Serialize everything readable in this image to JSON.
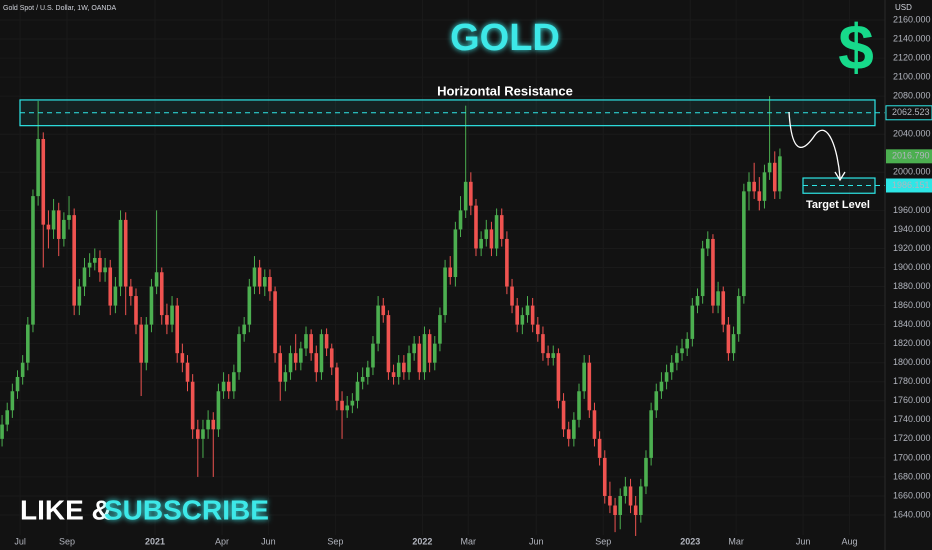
{
  "chart_data": {
    "type": "candlestick",
    "title": "GOLD",
    "subtitle": "Gold Spot / U.S. Dollar, 1W, OANDA",
    "symbol_icon": "$",
    "y_axis_label": "USD",
    "footer": {
      "left": "LIKE &",
      "right": "SUBSCRIBE"
    },
    "up_color": "#4caf50",
    "down_color": "#ef5350",
    "resistance": {
      "label": "Horizontal Resistance",
      "level": 2062.523,
      "zone": [
        2049,
        2076
      ],
      "color": "#2ee6e6"
    },
    "target": {
      "label": "Target Level",
      "level": 1986.151,
      "zone": [
        1978,
        1994
      ],
      "color": "#2ee6e6"
    },
    "last_price": {
      "value": 2016.79,
      "label": "2016.790"
    },
    "xlim": [
      -0.4,
      171.4
    ],
    "ylim": [
      1619,
      2181
    ],
    "xticks": [
      {
        "value": 3.5,
        "label": "Jul"
      },
      {
        "value": 12.6,
        "label": "Sep"
      },
      {
        "value": 29.7,
        "label": "2021"
      },
      {
        "value": 42.7,
        "label": "Apr"
      },
      {
        "value": 51.7,
        "label": "Jun"
      },
      {
        "value": 64.7,
        "label": "Sep"
      },
      {
        "value": 81.6,
        "label": "2022"
      },
      {
        "value": 90.5,
        "label": "Mar"
      },
      {
        "value": 103.7,
        "label": "Jun"
      },
      {
        "value": 116.7,
        "label": "Sep"
      },
      {
        "value": 133.6,
        "label": "2023"
      },
      {
        "value": 142.5,
        "label": "Mar"
      },
      {
        "value": 155.5,
        "label": "Jun"
      },
      {
        "value": 164.5,
        "label": "Aug"
      }
    ],
    "yticks": [
      {
        "value": 2160,
        "label": "2160.000"
      },
      {
        "value": 2140,
        "label": "2140.000"
      },
      {
        "value": 2120,
        "label": "2120.000"
      },
      {
        "value": 2100,
        "label": "2100.000"
      },
      {
        "value": 2080,
        "label": "2080.000"
      },
      {
        "value": 2040,
        "label": "2040.000"
      },
      {
        "value": 2000,
        "label": "2000.000"
      },
      {
        "value": 1960,
        "label": "1960.000"
      },
      {
        "value": 1940,
        "label": "1940.000"
      },
      {
        "value": 1920,
        "label": "1920.000"
      },
      {
        "value": 1900,
        "label": "1900.000"
      },
      {
        "value": 1880,
        "label": "1880.000"
      },
      {
        "value": 1860,
        "label": "1860.000"
      },
      {
        "value": 1840,
        "label": "1840.000"
      },
      {
        "value": 1820,
        "label": "1820.000"
      },
      {
        "value": 1800,
        "label": "1800.000"
      },
      {
        "value": 1780,
        "label": "1780.000"
      },
      {
        "value": 1760,
        "label": "1760.000"
      },
      {
        "value": 1740,
        "label": "1740.000"
      },
      {
        "value": 1720,
        "label": "1720.000"
      },
      {
        "value": 1700,
        "label": "1700.000"
      },
      {
        "value": 1680,
        "label": "1680.000"
      },
      {
        "value": 1660,
        "label": "1660.000"
      },
      {
        "value": 1640,
        "label": "1640.000"
      }
    ],
    "candles": [
      [
        1720,
        1745,
        1712,
        1735
      ],
      [
        1735,
        1758,
        1728,
        1750
      ],
      [
        1750,
        1778,
        1742,
        1770
      ],
      [
        1770,
        1792,
        1762,
        1785
      ],
      [
        1785,
        1808,
        1777,
        1800
      ],
      [
        1800,
        1848,
        1792,
        1840
      ],
      [
        1840,
        1982,
        1832,
        1975
      ],
      [
        1975,
        2075,
        1965,
        2035
      ],
      [
        2035,
        2042,
        1900,
        1945
      ],
      [
        1945,
        1960,
        1920,
        1940
      ],
      [
        1940,
        1972,
        1930,
        1960
      ],
      [
        1960,
        1968,
        1912,
        1930
      ],
      [
        1930,
        1958,
        1922,
        1950
      ],
      [
        1950,
        1975,
        1940,
        1955
      ],
      [
        1955,
        1962,
        1850,
        1860
      ],
      [
        1860,
        1888,
        1850,
        1880
      ],
      [
        1880,
        1910,
        1870,
        1900
      ],
      [
        1900,
        1915,
        1890,
        1905
      ],
      [
        1905,
        1920,
        1897,
        1910
      ],
      [
        1910,
        1918,
        1885,
        1895
      ],
      [
        1895,
        1910,
        1885,
        1900
      ],
      [
        1900,
        1908,
        1850,
        1860
      ],
      [
        1860,
        1890,
        1852,
        1880
      ],
      [
        1880,
        1960,
        1870,
        1950
      ],
      [
        1950,
        1958,
        1850,
        1880
      ],
      [
        1880,
        1888,
        1860,
        1870
      ],
      [
        1870,
        1878,
        1830,
        1840
      ],
      [
        1840,
        1848,
        1765,
        1800
      ],
      [
        1800,
        1848,
        1792,
        1840
      ],
      [
        1840,
        1888,
        1832,
        1880
      ],
      [
        1880,
        1960,
        1872,
        1895
      ],
      [
        1895,
        1900,
        1840,
        1850
      ],
      [
        1850,
        1862,
        1830,
        1840
      ],
      [
        1840,
        1870,
        1832,
        1860
      ],
      [
        1860,
        1868,
        1800,
        1810
      ],
      [
        1810,
        1820,
        1790,
        1800
      ],
      [
        1800,
        1808,
        1770,
        1780
      ],
      [
        1780,
        1788,
        1720,
        1730
      ],
      [
        1730,
        1740,
        1680,
        1720
      ],
      [
        1720,
        1740,
        1700,
        1730
      ],
      [
        1730,
        1750,
        1720,
        1740
      ],
      [
        1740,
        1748,
        1680,
        1730
      ],
      [
        1730,
        1778,
        1722,
        1770
      ],
      [
        1770,
        1790,
        1762,
        1780
      ],
      [
        1780,
        1788,
        1762,
        1770
      ],
      [
        1770,
        1798,
        1762,
        1790
      ],
      [
        1790,
        1838,
        1782,
        1830
      ],
      [
        1830,
        1848,
        1822,
        1840
      ],
      [
        1840,
        1888,
        1832,
        1880
      ],
      [
        1880,
        1912,
        1872,
        1900
      ],
      [
        1900,
        1908,
        1872,
        1880
      ],
      [
        1880,
        1898,
        1870,
        1890
      ],
      [
        1890,
        1898,
        1865,
        1875
      ],
      [
        1875,
        1880,
        1800,
        1810
      ],
      [
        1810,
        1818,
        1760,
        1780
      ],
      [
        1780,
        1798,
        1770,
        1790
      ],
      [
        1790,
        1818,
        1782,
        1810
      ],
      [
        1810,
        1830,
        1792,
        1800
      ],
      [
        1800,
        1822,
        1792,
        1815
      ],
      [
        1815,
        1838,
        1807,
        1830
      ],
      [
        1830,
        1835,
        1802,
        1810
      ],
      [
        1810,
        1818,
        1780,
        1790
      ],
      [
        1790,
        1835,
        1782,
        1830
      ],
      [
        1830,
        1836,
        1807,
        1815
      ],
      [
        1815,
        1820,
        1787,
        1795
      ],
      [
        1795,
        1800,
        1750,
        1760
      ],
      [
        1760,
        1770,
        1720,
        1750
      ],
      [
        1750,
        1765,
        1742,
        1755
      ],
      [
        1755,
        1768,
        1747,
        1760
      ],
      [
        1760,
        1790,
        1752,
        1780
      ],
      [
        1780,
        1795,
        1772,
        1785
      ],
      [
        1785,
        1802,
        1777,
        1795
      ],
      [
        1795,
        1828,
        1787,
        1820
      ],
      [
        1820,
        1870,
        1812,
        1860
      ],
      [
        1860,
        1868,
        1842,
        1850
      ],
      [
        1850,
        1855,
        1782,
        1790
      ],
      [
        1790,
        1798,
        1777,
        1785
      ],
      [
        1785,
        1808,
        1777,
        1800
      ],
      [
        1800,
        1808,
        1782,
        1790
      ],
      [
        1790,
        1818,
        1782,
        1810
      ],
      [
        1810,
        1828,
        1802,
        1820
      ],
      [
        1820,
        1828,
        1782,
        1790
      ],
      [
        1790,
        1838,
        1782,
        1830
      ],
      [
        1830,
        1835,
        1790,
        1800
      ],
      [
        1800,
        1828,
        1792,
        1820
      ],
      [
        1820,
        1858,
        1812,
        1850
      ],
      [
        1850,
        1908,
        1842,
        1900
      ],
      [
        1900,
        1912,
        1882,
        1890
      ],
      [
        1890,
        1948,
        1880,
        1940
      ],
      [
        1940,
        1975,
        1932,
        1960
      ],
      [
        1960,
        2070,
        1952,
        1990
      ],
      [
        1990,
        2000,
        1955,
        1965
      ],
      [
        1965,
        1972,
        1912,
        1920
      ],
      [
        1920,
        1938,
        1912,
        1930
      ],
      [
        1930,
        1950,
        1922,
        1940
      ],
      [
        1940,
        1948,
        1912,
        1920
      ],
      [
        1920,
        1962,
        1912,
        1955
      ],
      [
        1955,
        1962,
        1922,
        1930
      ],
      [
        1930,
        1938,
        1872,
        1880
      ],
      [
        1880,
        1888,
        1852,
        1860
      ],
      [
        1860,
        1868,
        1832,
        1840
      ],
      [
        1840,
        1858,
        1830,
        1850
      ],
      [
        1850,
        1870,
        1842,
        1860
      ],
      [
        1860,
        1868,
        1832,
        1840
      ],
      [
        1840,
        1848,
        1822,
        1830
      ],
      [
        1830,
        1838,
        1802,
        1810
      ],
      [
        1810,
        1818,
        1797,
        1805
      ],
      [
        1805,
        1818,
        1797,
        1810
      ],
      [
        1810,
        1815,
        1752,
        1760
      ],
      [
        1760,
        1768,
        1722,
        1730
      ],
      [
        1730,
        1738,
        1712,
        1720
      ],
      [
        1720,
        1748,
        1712,
        1740
      ],
      [
        1740,
        1778,
        1732,
        1770
      ],
      [
        1770,
        1808,
        1762,
        1800
      ],
      [
        1800,
        1808,
        1742,
        1750
      ],
      [
        1750,
        1758,
        1712,
        1720
      ],
      [
        1720,
        1728,
        1692,
        1700
      ],
      [
        1700,
        1708,
        1652,
        1660
      ],
      [
        1660,
        1675,
        1642,
        1650
      ],
      [
        1650,
        1658,
        1622,
        1640
      ],
      [
        1640,
        1668,
        1625,
        1660
      ],
      [
        1660,
        1680,
        1652,
        1670
      ],
      [
        1670,
        1678,
        1642,
        1650
      ],
      [
        1650,
        1660,
        1618,
        1640
      ],
      [
        1640,
        1678,
        1632,
        1670
      ],
      [
        1670,
        1708,
        1662,
        1700
      ],
      [
        1700,
        1758,
        1692,
        1750
      ],
      [
        1750,
        1778,
        1742,
        1770
      ],
      [
        1770,
        1790,
        1762,
        1780
      ],
      [
        1780,
        1798,
        1772,
        1790
      ],
      [
        1790,
        1808,
        1782,
        1800
      ],
      [
        1800,
        1818,
        1792,
        1810
      ],
      [
        1810,
        1825,
        1802,
        1815
      ],
      [
        1815,
        1832,
        1807,
        1825
      ],
      [
        1825,
        1868,
        1817,
        1860
      ],
      [
        1860,
        1878,
        1852,
        1870
      ],
      [
        1870,
        1928,
        1862,
        1920
      ],
      [
        1920,
        1938,
        1912,
        1930
      ],
      [
        1930,
        1935,
        1852,
        1860
      ],
      [
        1860,
        1885,
        1852,
        1875
      ],
      [
        1875,
        1880,
        1832,
        1840
      ],
      [
        1840,
        1848,
        1802,
        1810
      ],
      [
        1810,
        1838,
        1802,
        1830
      ],
      [
        1830,
        1878,
        1822,
        1870
      ],
      [
        1870,
        1988,
        1862,
        1980
      ],
      [
        1980,
        2000,
        1960,
        1990
      ],
      [
        1990,
        2010,
        1972,
        1980
      ],
      [
        1980,
        1995,
        1960,
        1970
      ],
      [
        1970,
        2008,
        1962,
        2000
      ],
      [
        2000,
        2080,
        1992,
        2010
      ],
      [
        2010,
        2022,
        1972,
        1980
      ],
      [
        1980,
        2025,
        1972,
        2016.79
      ]
    ]
  }
}
